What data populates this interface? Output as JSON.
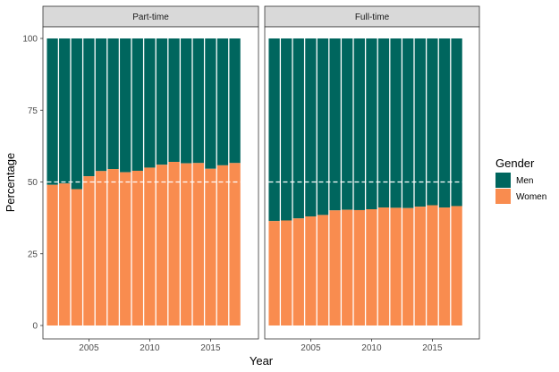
{
  "chart_data": {
    "type": "bar",
    "stacked": true,
    "xlabel": "Year",
    "ylabel": "Percentage",
    "ylim": [
      0,
      100
    ],
    "yticks": [
      0,
      25,
      50,
      75,
      100
    ],
    "xticks": [
      2005,
      2010,
      2015
    ],
    "reference_line": 50,
    "legend_title": "Gender",
    "legend_position": "right",
    "series_names": [
      "Men",
      "Women"
    ],
    "colors": {
      "Men": "#00665e",
      "Women": "#f98c4f"
    },
    "panels": [
      {
        "title": "Part-time",
        "years": [
          2002,
          2003,
          2004,
          2005,
          2006,
          2007,
          2008,
          2009,
          2010,
          2011,
          2012,
          2013,
          2014,
          2015,
          2016,
          2017
        ],
        "women": [
          49,
          49.5,
          47.5,
          52,
          53.8,
          54.5,
          53.4,
          53.9,
          55,
          56,
          57,
          56.5,
          56.6,
          54.6,
          55.8,
          56.6
        ]
      },
      {
        "title": "Full-time",
        "years": [
          2002,
          2003,
          2004,
          2005,
          2006,
          2007,
          2008,
          2009,
          2010,
          2011,
          2012,
          2013,
          2014,
          2015,
          2016,
          2017
        ],
        "women": [
          36.4,
          36.6,
          37.3,
          38,
          38.5,
          40.1,
          40.3,
          40.2,
          40.5,
          41.1,
          41,
          40.9,
          41.4,
          41.9,
          41.1,
          41.6
        ]
      }
    ]
  }
}
